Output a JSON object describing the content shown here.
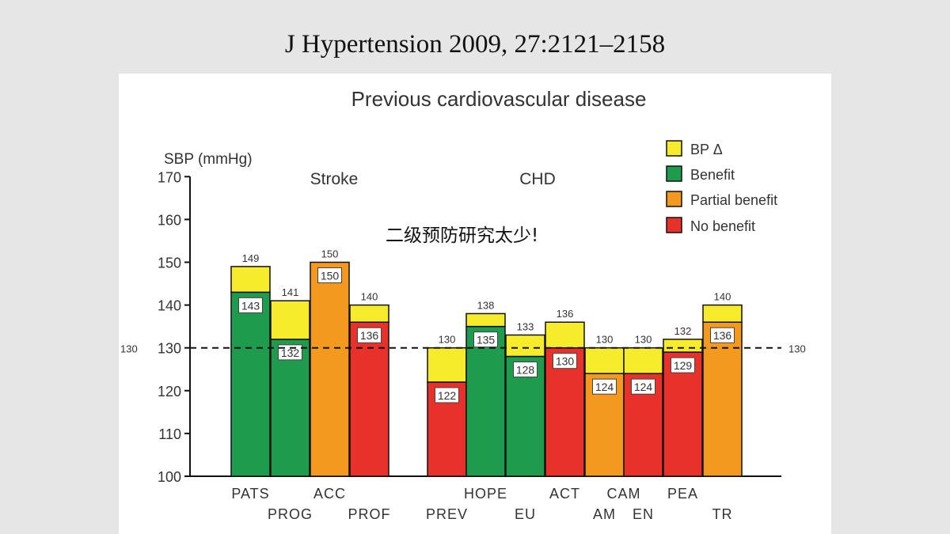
{
  "slide": {
    "title": "J Hypertension  2009, 27:2121–2158",
    "note": "二级预防研究太少!"
  },
  "chart_data": {
    "type": "bar",
    "title": "Previous cardiovascular disease",
    "ylabel": "SBP (mmHg)",
    "ylim": [
      100,
      170
    ],
    "yticks": [
      100,
      110,
      120,
      130,
      140,
      150,
      160,
      170
    ],
    "reference_line": {
      "value": 130,
      "label_left": "130",
      "label_right": "130"
    },
    "groups": [
      {
        "name": "Stroke"
      },
      {
        "name": "CHD"
      }
    ],
    "legend": {
      "placement": "top-right",
      "items": [
        {
          "label": "BP Δ",
          "color": "#f7ec2b"
        },
        {
          "label": "Benefit",
          "color": "#1e9b4d"
        },
        {
          "label": "Partial benefit",
          "color": "#f39a1e"
        },
        {
          "label": "No benefit",
          "color": "#e8312a"
        }
      ]
    },
    "bars": [
      {
        "label": "PATS",
        "group": "Stroke",
        "row": 1,
        "top": 149,
        "achieved": 143,
        "outcome": "Benefit",
        "top_label": "149",
        "achieved_label": "143"
      },
      {
        "label": "PROG",
        "group": "Stroke",
        "row": 2,
        "top": 141,
        "achieved": 132,
        "outcome": "Benefit",
        "top_label": "141",
        "achieved_label": "132"
      },
      {
        "label": "ACC",
        "group": "Stroke",
        "row": 1,
        "top": 150,
        "achieved": 150,
        "outcome": "Partial benefit",
        "top_label": "150",
        "achieved_label": "150"
      },
      {
        "label": "PROF",
        "group": "Stroke",
        "row": 2,
        "top": 140,
        "achieved": 136,
        "outcome": "No benefit",
        "top_label": "140",
        "achieved_label": "136"
      },
      {
        "label": "PREV",
        "group": "CHD",
        "row": 2,
        "top": 130,
        "achieved": 122,
        "outcome": "No benefit",
        "top_label": "130",
        "achieved_label": "122"
      },
      {
        "label": "HOPE",
        "group": "CHD",
        "row": 1,
        "top": 138,
        "achieved": 135,
        "outcome": "Benefit",
        "top_label": "138",
        "achieved_label": "135"
      },
      {
        "label": "EU",
        "group": "CHD",
        "row": 2,
        "top": 133,
        "achieved": 128,
        "outcome": "Benefit",
        "top_label": "133",
        "achieved_label": "128"
      },
      {
        "label": "ACT",
        "group": "CHD",
        "row": 1,
        "top": 136,
        "achieved": 130,
        "outcome": "No benefit",
        "top_label": "136",
        "achieved_label": "130"
      },
      {
        "label": "AM",
        "group": "CHD",
        "row": 2,
        "top": 130,
        "achieved": 124,
        "outcome": "Partial benefit",
        "top_label": "130",
        "achieved_label": "124"
      },
      {
        "label": "EN",
        "group": "CHD",
        "row": 2,
        "top": 130,
        "achieved": 124,
        "outcome": "No benefit",
        "top_label": "130",
        "achieved_label": "124"
      },
      {
        "label": "PEA",
        "group": "CHD",
        "row": 1,
        "top": 132,
        "achieved": 129,
        "outcome": "No benefit",
        "top_label": "132",
        "achieved_label": "129"
      },
      {
        "label": "TR",
        "group": "CHD",
        "row": 2,
        "top": 140,
        "achieved": 136,
        "outcome": "Partial benefit",
        "top_label": "140",
        "achieved_label": "136"
      }
    ],
    "extra_category_labels": [
      {
        "text": "CAM",
        "between": [
          "AM",
          "EN"
        ]
      }
    ],
    "colors": {
      "bp_delta": "#f7ec2b",
      "Benefit": "#1e9b4d",
      "Partial benefit": "#f39a1e",
      "No benefit": "#e8312a"
    }
  }
}
